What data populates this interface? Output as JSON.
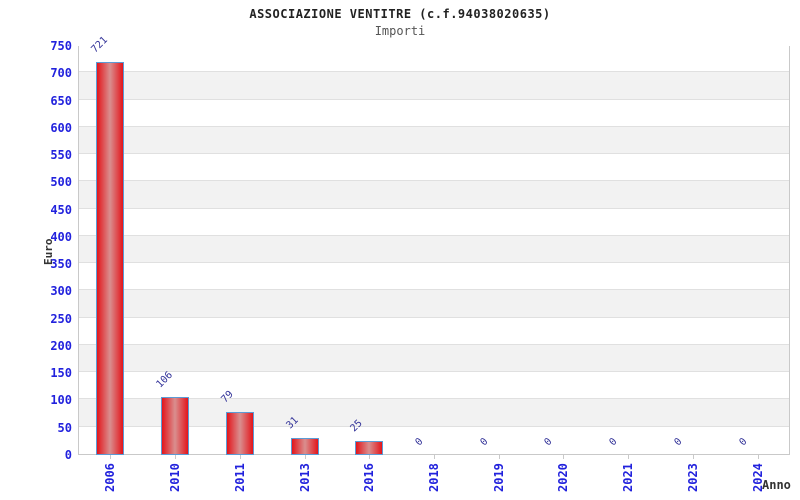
{
  "header": {
    "title": "ASSOCIAZIONE VENTITRE (c.f.94038020635)",
    "subtitle": "Importi"
  },
  "chart_data": {
    "type": "bar",
    "title": "ASSOCIAZIONE VENTITRE (c.f.94038020635)",
    "subtitle": "Importi",
    "categories": [
      "2006",
      "2010",
      "2011",
      "2013",
      "2016",
      "2018",
      "2019",
      "2020",
      "2021",
      "2023",
      "2024"
    ],
    "values": [
      721,
      106,
      79,
      31,
      25,
      0,
      0,
      0,
      0,
      0,
      0
    ],
    "xlabel": "Anno",
    "ylabel": "Euro",
    "ylim": [
      0,
      750
    ],
    "ytick_step": 50,
    "grid": true,
    "legend": false,
    "bar_labels": [
      "721",
      "106",
      "79",
      "31",
      "25",
      "0",
      "0",
      "0",
      "0",
      "0",
      "0"
    ],
    "colors": {
      "bar_edge": "#e3151b",
      "bar_center": "#d98f8f",
      "bar_border": "#5b9bd5",
      "tick_label": "#2222dd",
      "value_label": "#333399",
      "axis_label": "#333333",
      "band": "#f2f2f2",
      "gridline": "#e0e0e0",
      "plot_border": "#c9c9c9",
      "title": "#222222",
      "subtitle": "#555555"
    }
  }
}
